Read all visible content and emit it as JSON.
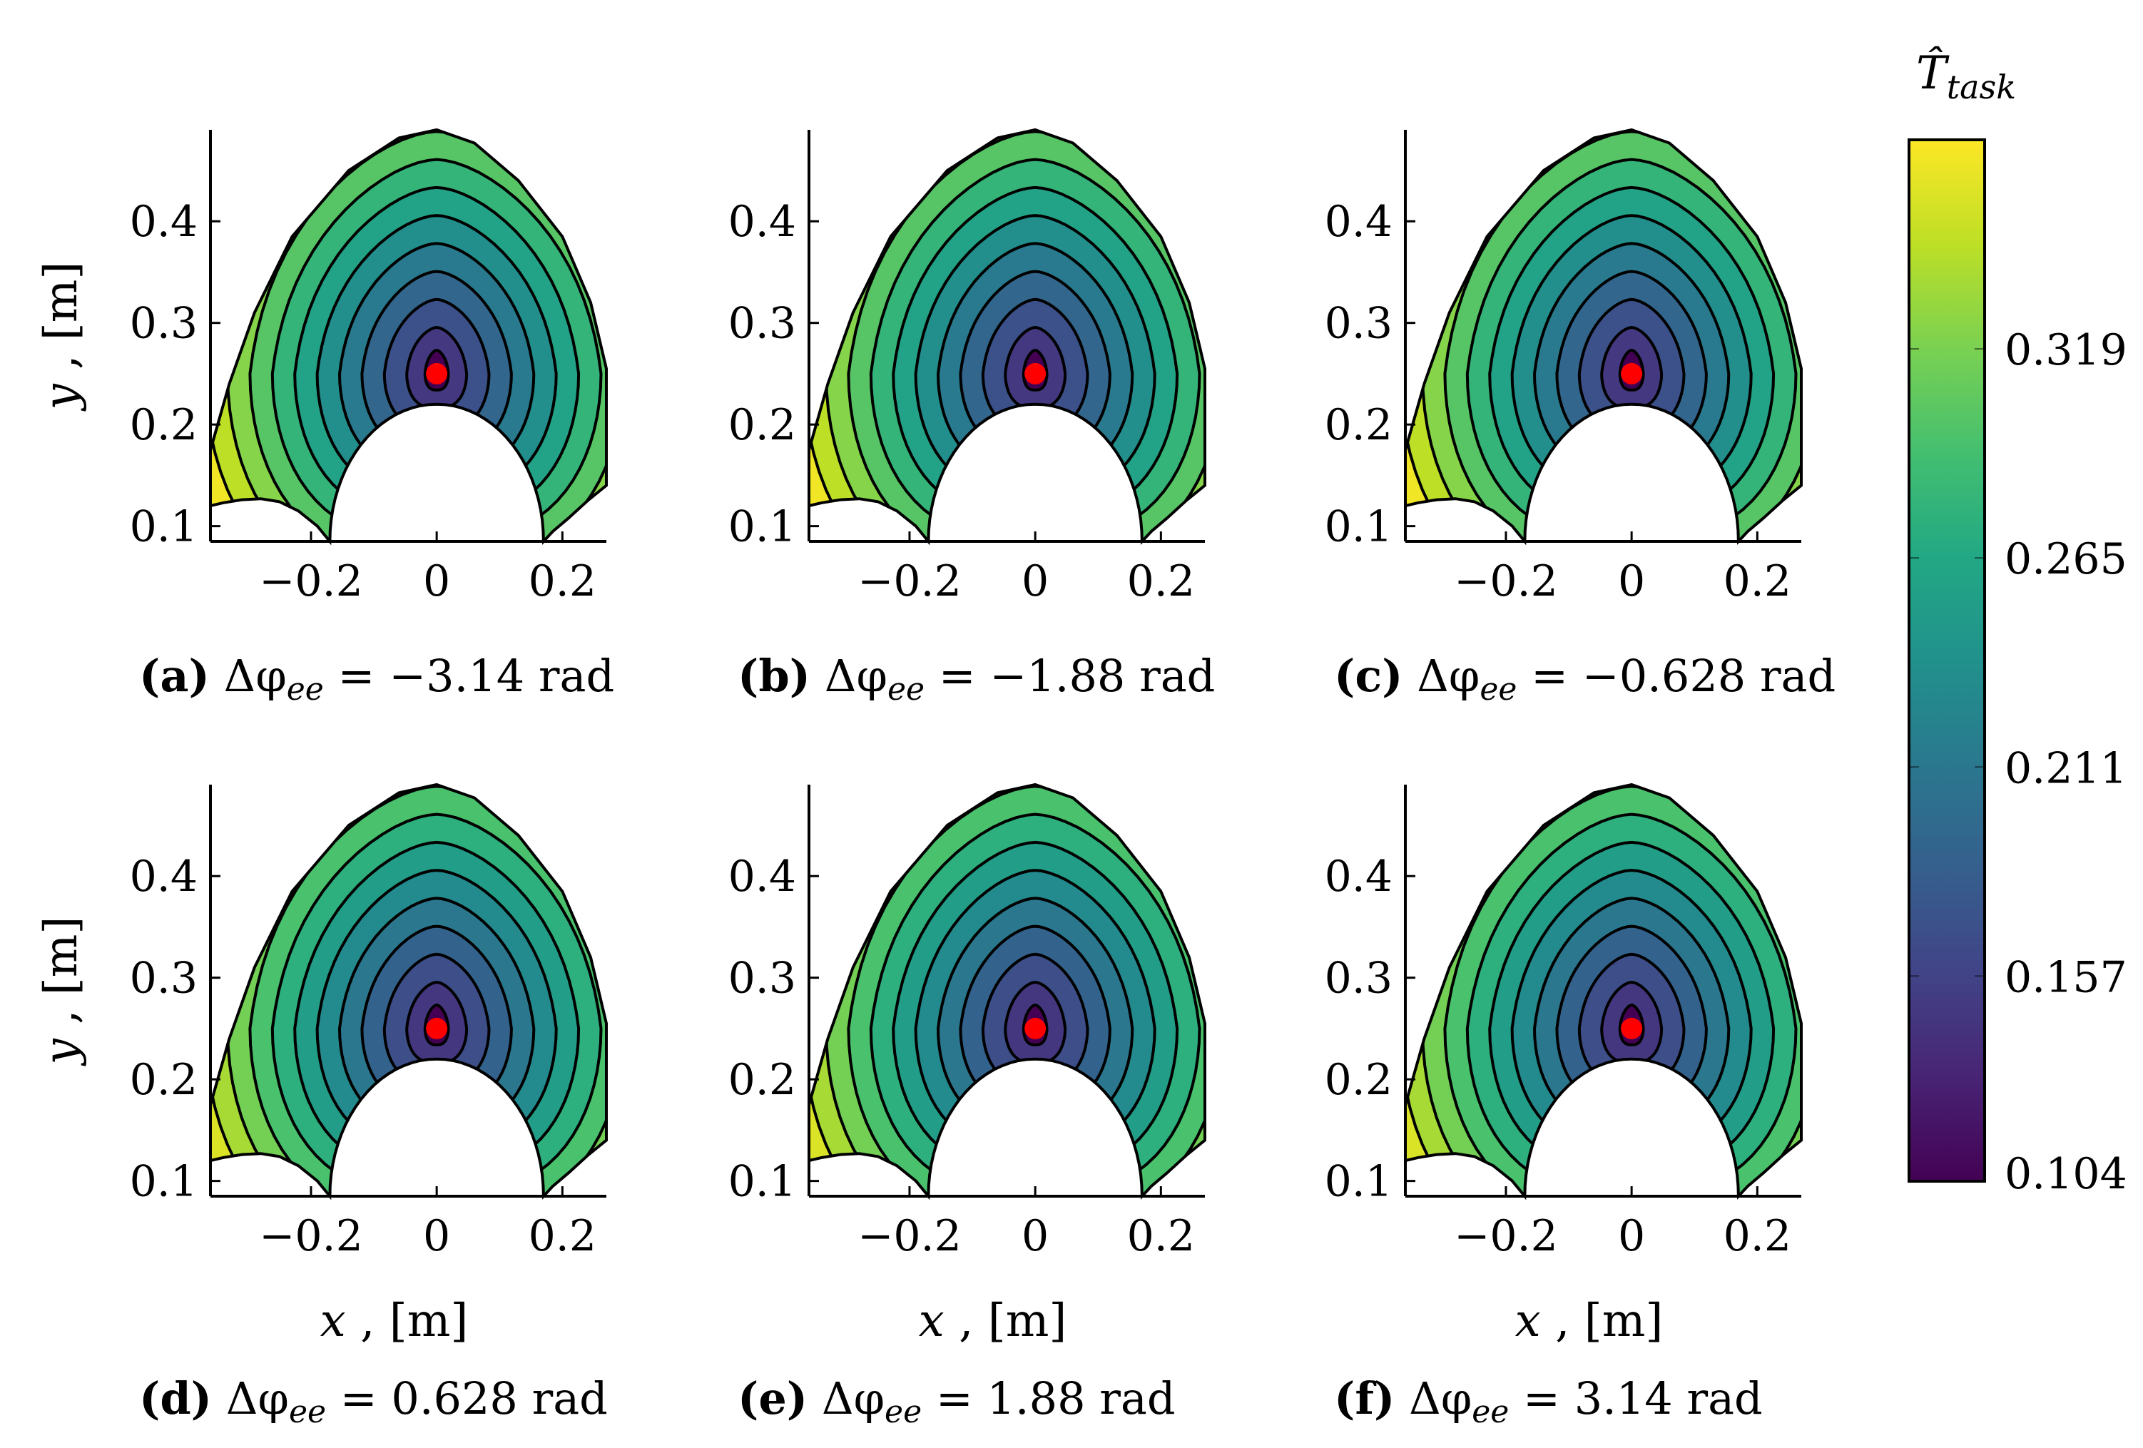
{
  "chart_data": {
    "type": "contour",
    "colormap": "viridis",
    "marker": {
      "x": 0,
      "y": 0.25,
      "color": "#ff0000"
    },
    "xticks": [
      -0.2,
      0,
      0.2
    ],
    "xtick_labels": [
      "−0.2",
      "0",
      "0.2"
    ],
    "yticks": [
      0.1,
      0.2,
      0.3,
      0.4
    ],
    "ytick_labels": [
      "0.1",
      "0.2",
      "0.3",
      "0.4"
    ],
    "xlim": [
      -0.36,
      0.27
    ],
    "ylim": [
      0.085,
      0.49
    ],
    "xlabel": {
      "var": "x",
      "unit": " , [m]"
    },
    "ylabel": {
      "var": "y",
      "unit": " , [m]"
    },
    "contour_levels": 10,
    "subplots": [
      {
        "id": "a",
        "label": "(a)",
        "delta_phi_ee": -3.14,
        "value_text": " = −3.14 rad"
      },
      {
        "id": "b",
        "label": "(b)",
        "delta_phi_ee": -1.88,
        "value_text": " = −1.88 rad"
      },
      {
        "id": "c",
        "label": "(c)",
        "delta_phi_ee": -0.628,
        "value_text": " = −0.628 rad"
      },
      {
        "id": "d",
        "label": "(d)",
        "delta_phi_ee": 0.628,
        "value_text": " = 0.628 rad"
      },
      {
        "id": "e",
        "label": "(e)",
        "delta_phi_ee": 1.88,
        "value_text": " = 1.88 rad"
      },
      {
        "id": "f",
        "label": "(f)",
        "delta_phi_ee": 3.14,
        "value_text": " = 3.14 rad"
      }
    ],
    "caption_symbol": "Δφ",
    "caption_subscript": "ee",
    "colorbar": {
      "title_symbol": "T̂",
      "title_subscript": "task",
      "min": 0.104,
      "max": 0.373,
      "tick_values": [
        0.104,
        0.157,
        0.211,
        0.265,
        0.319
      ],
      "tick_labels": [
        "0.104",
        "0.157",
        "0.211",
        "0.265",
        "0.319"
      ]
    }
  }
}
